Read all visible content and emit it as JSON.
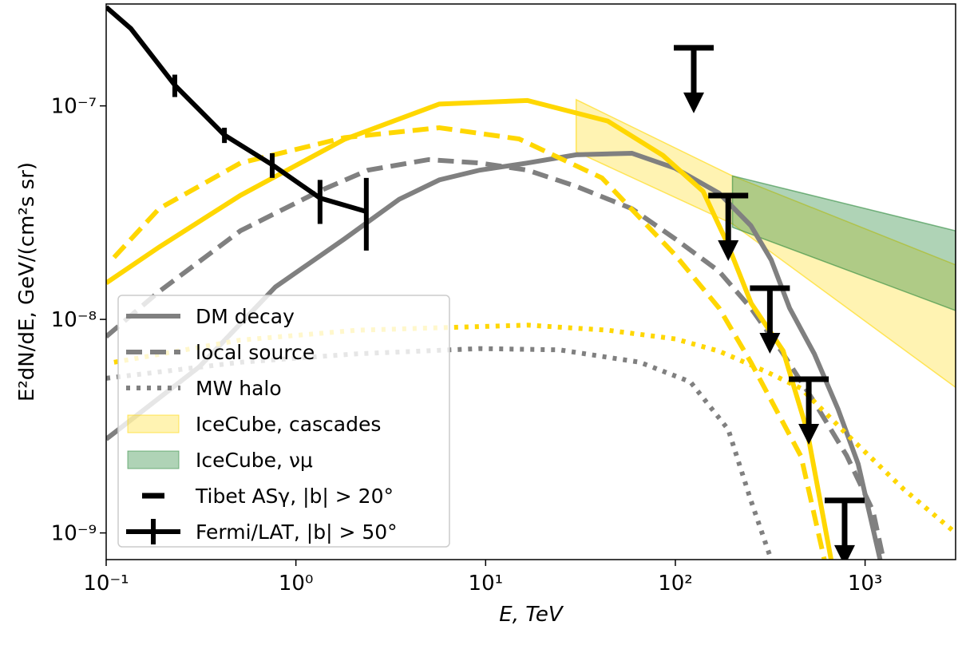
{
  "chart_data": {
    "type": "line",
    "xscale": "log",
    "yscale": "log",
    "xlim": [
      0.1,
      3000
    ],
    "ylim": [
      7.5e-10,
      3e-07
    ],
    "xticks": [
      {
        "value": 0.1,
        "label": "10⁻¹"
      },
      {
        "value": 1,
        "label": "10⁰"
      },
      {
        "value": 10,
        "label": "10¹"
      },
      {
        "value": 100,
        "label": "10²"
      },
      {
        "value": 1000,
        "label": "10³"
      }
    ],
    "yticks": [
      {
        "value": 1e-09,
        "label": "10⁻⁹"
      },
      {
        "value": 1e-08,
        "label": "10⁻⁸"
      },
      {
        "value": 1e-07,
        "label": "10⁻⁷"
      }
    ],
    "xlabel": "E, TeV",
    "ylabel": "E²dN/dE, GeV/(cm²s sr)",
    "legend": "lower left",
    "series": [
      {
        "name": "DM decay",
        "color": "#808080",
        "linestyle": "solid",
        "x": [
          0.1,
          0.31,
          0.78,
          1.8,
          3.5,
          5.7,
          9.3,
          16.6,
          30,
          59,
          100,
          170,
          250,
          320,
          400,
          540,
          720,
          920,
          1200
        ],
        "values": [
          2.75e-09,
          6e-09,
          1.42e-08,
          2.38e-08,
          3.65e-08,
          4.5e-08,
          5e-08,
          5.4e-08,
          5.9e-08,
          6e-08,
          5.1e-08,
          3.9e-08,
          2.75e-08,
          1.9e-08,
          1.13e-08,
          6.9e-09,
          3.8e-09,
          2.1e-09,
          7.5e-10
        ]
      },
      {
        "name": "local source",
        "color": "#808080",
        "linestyle": "dashed",
        "x": [
          0.1,
          0.19,
          0.51,
          1.34,
          2.4,
          5.0,
          9.3,
          16.6,
          30,
          59,
          100,
          170,
          250,
          370,
          540,
          800,
          1100,
          1250
        ],
        "values": [
          8.3e-09,
          1.35e-08,
          2.6e-08,
          4e-08,
          5e-08,
          5.6e-08,
          5.4e-08,
          5e-08,
          4.2e-08,
          3.3e-08,
          2.38e-08,
          1.68e-08,
          1.13e-08,
          6.9e-09,
          4.1e-09,
          2.3e-09,
          1.27e-09,
          7.5e-10
        ]
      },
      {
        "name": "MW halo",
        "color": "#808080",
        "linestyle": "dotted",
        "x": [
          0.1,
          0.51,
          2.1,
          9.3,
          24.5,
          65,
          120,
          190,
          250,
          320
        ],
        "values": [
          5.3e-09,
          6.3e-09,
          6.9e-09,
          7.3e-09,
          7.2e-09,
          6.3e-09,
          5.1e-09,
          3.05e-09,
          1.42e-09,
          7.5e-10
        ]
      },
      {
        "color": "#ffd700",
        "linestyle": "solid",
        "x": [
          0.1,
          0.19,
          0.51,
          1.8,
          5.7,
          16.6,
          44,
          86,
          140,
          188,
          251,
          370,
          495,
          662
        ],
        "values": [
          1.48e-08,
          2.18e-08,
          3.81e-08,
          6.97e-08,
          1.02e-07,
          1.06e-07,
          8.49e-08,
          5.86e-08,
          3.98e-08,
          2.27e-08,
          1.19e-08,
          7.12e-09,
          3.01e-09,
          7.5e-10
        ]
      },
      {
        "color": "#ffd700",
        "linestyle": "dashed",
        "x": [
          0.11,
          0.19,
          0.51,
          1.8,
          5.7,
          15,
          41,
          100,
          170,
          250,
          460,
          610
        ],
        "values": [
          1.95e-08,
          3.3e-08,
          5.4e-08,
          7.1e-08,
          7.9e-08,
          7e-08,
          4.6e-08,
          2e-08,
          1.13e-08,
          6.3e-09,
          2.28e-09,
          7.5e-10
        ]
      },
      {
        "color": "#ffd700",
        "linestyle": "dotted",
        "x": [
          0.11,
          0.51,
          2.1,
          16.6,
          44,
          100,
          170,
          300,
          460,
          800,
          1600,
          3000
        ],
        "values": [
          6.3e-09,
          8e-09,
          8.9e-09,
          9.4e-09,
          8.9e-09,
          8.1e-09,
          7.1e-09,
          5.7e-09,
          4.75e-09,
          2.9e-09,
          1.6e-09,
          1e-09
        ]
      },
      {
        "name": "Fermi/LAT, |b| > 50°",
        "color": "#000000",
        "linestyle": "solid",
        "x": [
          0.1,
          0.135,
          0.23,
          0.42,
          0.75,
          1.34,
          2.35
        ],
        "values": [
          2.9e-07,
          2.3e-07,
          1.25e-07,
          7.3e-08,
          5.3e-08,
          3.7e-08,
          3.2e-08
        ],
        "errors_high": [
          null,
          null,
          1.4e-07,
          7.9e-08,
          6e-08,
          4.5e-08,
          4.6e-08
        ],
        "errors_low": [
          null,
          null,
          1.1e-07,
          6.7e-08,
          4.6e-08,
          2.8e-08,
          2.1e-08
        ]
      }
    ],
    "bands": [
      {
        "name": "IceCube, cascades",
        "color": "#ffd700",
        "opacity": 0.3,
        "x": [
          30,
          200,
          3000
        ],
        "upper": [
          1.07e-07,
          4.7e-08,
          1.8e-08
        ],
        "lower": [
          6.1e-08,
          2.8e-08,
          4.8e-09
        ]
      },
      {
        "name": "IceCube, νμ",
        "color": "#2e8b3e",
        "opacity": 0.38,
        "x": [
          200,
          3000
        ],
        "upper": [
          4.7e-08,
          2.6e-08
        ],
        "lower": [
          2.7e-08,
          1.1e-08
        ]
      }
    ],
    "upper_limits": {
      "name": "Tibet ASγ, |b| > 20°",
      "color": "#000000",
      "x": [
        125,
        190,
        315,
        505,
        780
      ],
      "values": [
        1.87e-07,
        3.8e-08,
        1.4e-08,
        5.25e-09,
        1.42e-09
      ]
    }
  }
}
